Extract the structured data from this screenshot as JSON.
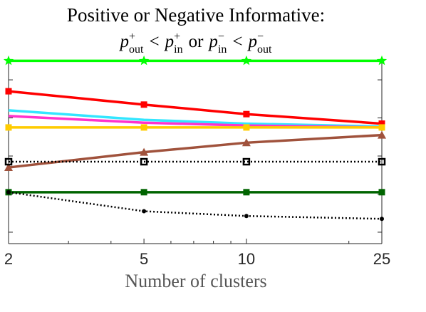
{
  "chart_data": {
    "type": "line",
    "title_line1": "Positive or Negative Informative:",
    "title_line2": {
      "p": "p",
      "sub_out": "out",
      "sub_in": "in",
      "sup_plus": "+",
      "sup_minus": "−",
      "lt": "<",
      "or": "or"
    },
    "xlabel": "Number of clusters",
    "ylabel": "",
    "x_scale": "log",
    "x": [
      2,
      5,
      10,
      25
    ],
    "x_tick_labels": [
      "2",
      "5",
      "10",
      "25"
    ],
    "xlim": [
      2,
      25
    ],
    "ylim": [
      0.04,
      1.02
    ],
    "y_ticks": [
      0.1,
      0.3,
      0.5,
      0.7,
      0.9
    ],
    "grid": false,
    "series": [
      {
        "color": "#00ff00",
        "marker": "star",
        "dash": "solid",
        "values": [
          1.0,
          1.0,
          1.0,
          1.0
        ]
      },
      {
        "color": "#ff0000",
        "marker": "square",
        "dash": "solid",
        "values": [
          0.84,
          0.77,
          0.72,
          0.67
        ]
      },
      {
        "color": "#33e6ff",
        "marker": "none",
        "dash": "solid",
        "values": [
          0.74,
          0.69,
          0.67,
          0.655
        ]
      },
      {
        "color": "#ff33cc",
        "marker": "none",
        "dash": "solid",
        "values": [
          0.71,
          0.675,
          0.66,
          0.65
        ]
      },
      {
        "color": "#ffcc00",
        "marker": "square",
        "dash": "solid",
        "values": [
          0.65,
          0.65,
          0.65,
          0.65
        ]
      },
      {
        "color": "#a0523c",
        "marker": "triangle",
        "dash": "solid",
        "values": [
          0.44,
          0.52,
          0.57,
          0.61
        ]
      },
      {
        "color": "#000000",
        "marker": "square-open",
        "dash": "dotted",
        "values": [
          0.47,
          0.47,
          0.47,
          0.47
        ]
      },
      {
        "color": "#006400",
        "marker": "square",
        "dash": "solid",
        "values": [
          0.31,
          0.31,
          0.31,
          0.31
        ]
      },
      {
        "color": "#000000",
        "marker": "dot",
        "dash": "dotted",
        "values": [
          0.31,
          0.21,
          0.185,
          0.17
        ]
      }
    ]
  }
}
